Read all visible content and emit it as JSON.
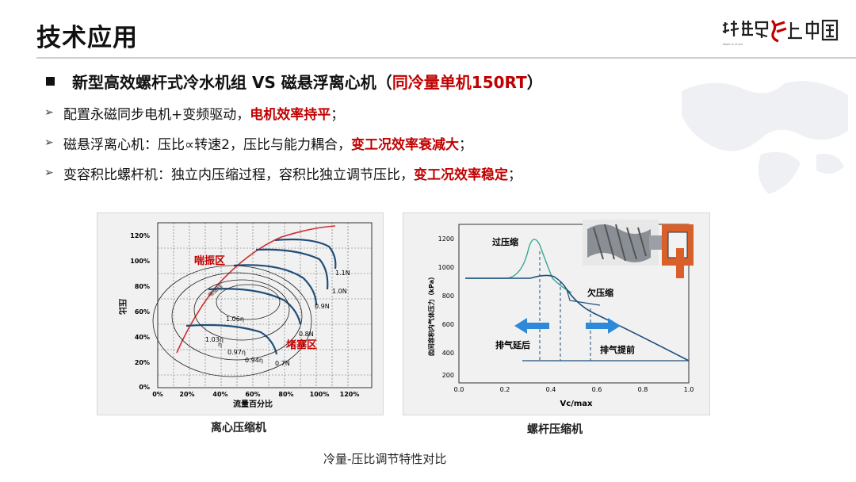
{
  "page": {
    "title": "技术应用",
    "logo_text": "让世界爱上中国造"
  },
  "headline": {
    "text_main": "新型高效螺杆式冷水机组 VS 磁悬浮离心机（",
    "text_red": "同冷量单机150RT",
    "text_end": "）"
  },
  "bullets": [
    {
      "text": "配置永磁同步电机+变频驱动，",
      "highlight": "电机效率持平",
      "tail": "；"
    },
    {
      "text": "磁悬浮离心机：压比∝转速2，压比与能力耦合，",
      "highlight": "变工况效率衰减大",
      "tail": "；"
    },
    {
      "text": "变容积比螺杆机：独立内压缩过程，容积比独立调节压比，",
      "highlight": "变工况效率稳定",
      "tail": "；"
    }
  ],
  "centrifugal_chart": {
    "caption": "离心压缩机",
    "xlabel": "流量百分比",
    "ylabel": "压比",
    "x_ticks": [
      "0%",
      "20%",
      "40%",
      "60%",
      "80%",
      "100%",
      "120%"
    ],
    "y_ticks": [
      "0%",
      "20%",
      "40%",
      "60%",
      "80%",
      "100%",
      "120%"
    ],
    "surge_label": "喘振区",
    "surge_line_label": "喘振线",
    "choke_label": "堵塞区",
    "speed_labels": [
      "1.1N",
      "1.0N",
      "0.9N",
      "0.8N",
      "0.7N"
    ],
    "eff_labels": [
      "1.06η",
      "1.03η",
      "η",
      "0.97η",
      "0.94η"
    ]
  },
  "screw_chart": {
    "caption": "螺杆压缩机",
    "xlabel": "Vc/max",
    "ylabel": "齿间容积内气体压力（kPa）",
    "x_ticks": [
      "0.0",
      "0.2",
      "0.4",
      "0.6",
      "0.8",
      "1.0"
    ],
    "y_ticks": [
      "200",
      "400",
      "600",
      "800",
      "1000",
      "1200"
    ],
    "over_label": "过压缩",
    "under_label": "欠压缩",
    "early_label": "排气延后",
    "late_label": "排气提前"
  },
  "footer_caption": "冷量-压比调节特性对比",
  "colors": {
    "accent_red": "#c00000",
    "curve_blue": "#1f4e79",
    "surge_red": "#d03030",
    "teal": "#3aa690",
    "arrow_blue": "#2e8ad8"
  },
  "icons": [
    "square-bullet-icon",
    "arrow-bullet-icon",
    "screw-rotor-icon",
    "world-map-icon",
    "brand-logo-icon"
  ]
}
